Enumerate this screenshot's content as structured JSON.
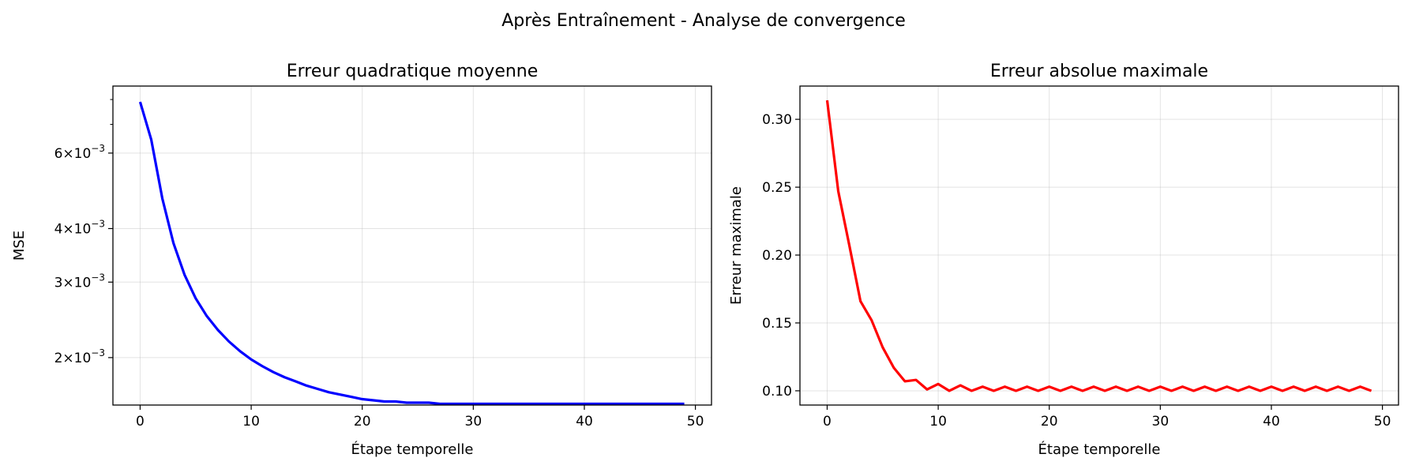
{
  "figure": {
    "suptitle": "Après Entraînement - Analyse de convergence"
  },
  "chart_data": [
    {
      "type": "line",
      "title": "Erreur quadratique moyenne",
      "xlabel": "Étape temporelle",
      "ylabel": "MSE",
      "yscale": "log",
      "xlim": [
        -2.45,
        51.45
      ],
      "ylim": [
        0.00155,
        0.0086
      ],
      "xticks": [
        0,
        10,
        20,
        30,
        40,
        50
      ],
      "yticks": [
        {
          "value": 0.006,
          "mantissa": "6",
          "exponent": "−3"
        },
        {
          "value": 0.004,
          "mantissa": "4",
          "exponent": "−3"
        },
        {
          "value": 0.003,
          "mantissa": "3",
          "exponent": "−3"
        },
        {
          "value": 0.002,
          "mantissa": "2",
          "exponent": "−3"
        }
      ],
      "minor_yticks": [
        0.007,
        0.008
      ],
      "grid": true,
      "color": "#0000ff",
      "series": [
        {
          "x": [
            0,
            1,
            2,
            3,
            4,
            5,
            6,
            7,
            8,
            9,
            10,
            11,
            12,
            13,
            14,
            15,
            16,
            17,
            18,
            19,
            20,
            21,
            22,
            23,
            24,
            25,
            26,
            27,
            28,
            29,
            30,
            31,
            32,
            33,
            34,
            35,
            36,
            37,
            38,
            39,
            40,
            41,
            42,
            43,
            44,
            45,
            46,
            47,
            48,
            49
          ],
          "values": [
            0.0079,
            0.00645,
            0.0047,
            0.0037,
            0.00312,
            0.00275,
            0.0025,
            0.00232,
            0.00218,
            0.00207,
            0.00198,
            0.00191,
            0.00185,
            0.0018,
            0.00176,
            0.00172,
            0.00169,
            0.00166,
            0.00164,
            0.00162,
            0.0016,
            0.00159,
            0.00158,
            0.00158,
            0.00157,
            0.00157,
            0.00157,
            0.00156,
            0.00156,
            0.00156,
            0.00156,
            0.00156,
            0.00156,
            0.00156,
            0.00156,
            0.00156,
            0.00156,
            0.00156,
            0.00156,
            0.00156,
            0.00156,
            0.00156,
            0.00156,
            0.00156,
            0.00156,
            0.00156,
            0.00156,
            0.00156,
            0.00156,
            0.00156
          ]
        }
      ]
    },
    {
      "type": "line",
      "title": "Erreur absolue maximale",
      "xlabel": "Étape temporelle",
      "ylabel": "Erreur maximale",
      "yscale": "linear",
      "xlim": [
        -2.45,
        51.45
      ],
      "ylim": [
        0.0895,
        0.3245
      ],
      "xticks": [
        0,
        10,
        20,
        30,
        40,
        50
      ],
      "yticks": [
        {
          "value": 0.1,
          "label": "0.10"
        },
        {
          "value": 0.15,
          "label": "0.15"
        },
        {
          "value": 0.2,
          "label": "0.20"
        },
        {
          "value": 0.25,
          "label": "0.25"
        },
        {
          "value": 0.3,
          "label": "0.30"
        }
      ],
      "grid": true,
      "color": "#ff0000",
      "series": [
        {
          "x": [
            0,
            1,
            2,
            3,
            4,
            5,
            6,
            7,
            8,
            9,
            10,
            11,
            12,
            13,
            14,
            15,
            16,
            17,
            18,
            19,
            20,
            21,
            22,
            23,
            24,
            25,
            26,
            27,
            28,
            29,
            30,
            31,
            32,
            33,
            34,
            35,
            36,
            37,
            38,
            39,
            40,
            41,
            42,
            43,
            44,
            45,
            46,
            47,
            48,
            49
          ],
          "values": [
            0.314,
            0.247,
            0.207,
            0.166,
            0.152,
            0.132,
            0.117,
            0.107,
            0.108,
            0.101,
            0.105,
            0.1,
            0.104,
            0.1,
            0.103,
            0.1,
            0.103,
            0.1,
            0.103,
            0.1,
            0.103,
            0.1,
            0.103,
            0.1,
            0.103,
            0.1,
            0.103,
            0.1,
            0.103,
            0.1,
            0.103,
            0.1,
            0.103,
            0.1,
            0.103,
            0.1,
            0.103,
            0.1,
            0.103,
            0.1,
            0.103,
            0.1,
            0.103,
            0.1,
            0.103,
            0.1,
            0.103,
            0.1,
            0.103,
            0.1
          ]
        }
      ]
    }
  ]
}
